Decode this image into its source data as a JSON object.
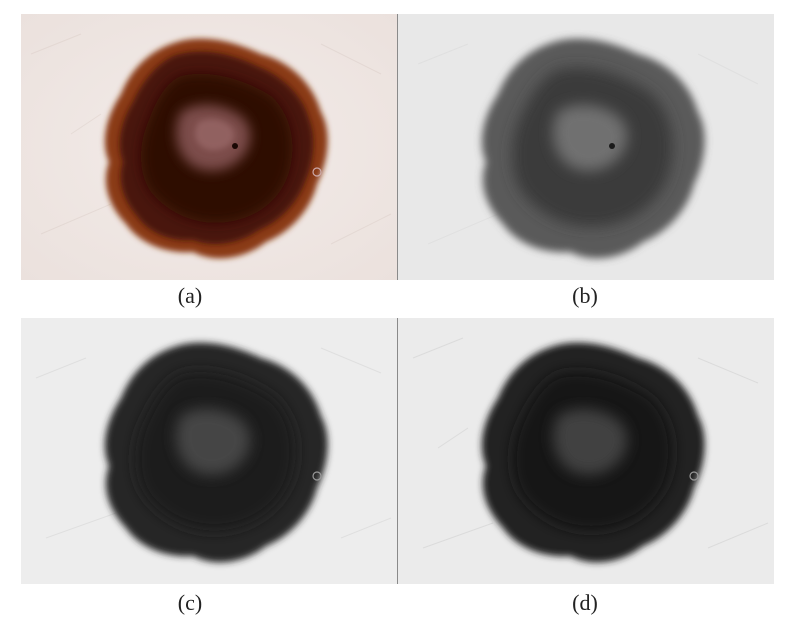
{
  "figure": {
    "panels": [
      {
        "id": "a",
        "caption": "(a)",
        "mode": "color"
      },
      {
        "id": "b",
        "caption": "(b)",
        "mode": "grayscale"
      },
      {
        "id": "c",
        "caption": "(c)",
        "mode": "enhanced"
      },
      {
        "id": "d",
        "caption": "(d)",
        "mode": "enhanced"
      }
    ]
  },
  "colors": {
    "skin_color": "#efe6e3",
    "lesion_rim_color": "#8a3a14",
    "lesion_core_color": "#3a1208",
    "lesion_center_color": "#8a5a5a",
    "skin_gray": "#e9e9e9",
    "lesion_gray_mid": "#4a4a4a",
    "lesion_gray_dark": "#1a1a1a",
    "frame_color": "#8a8a8a"
  }
}
